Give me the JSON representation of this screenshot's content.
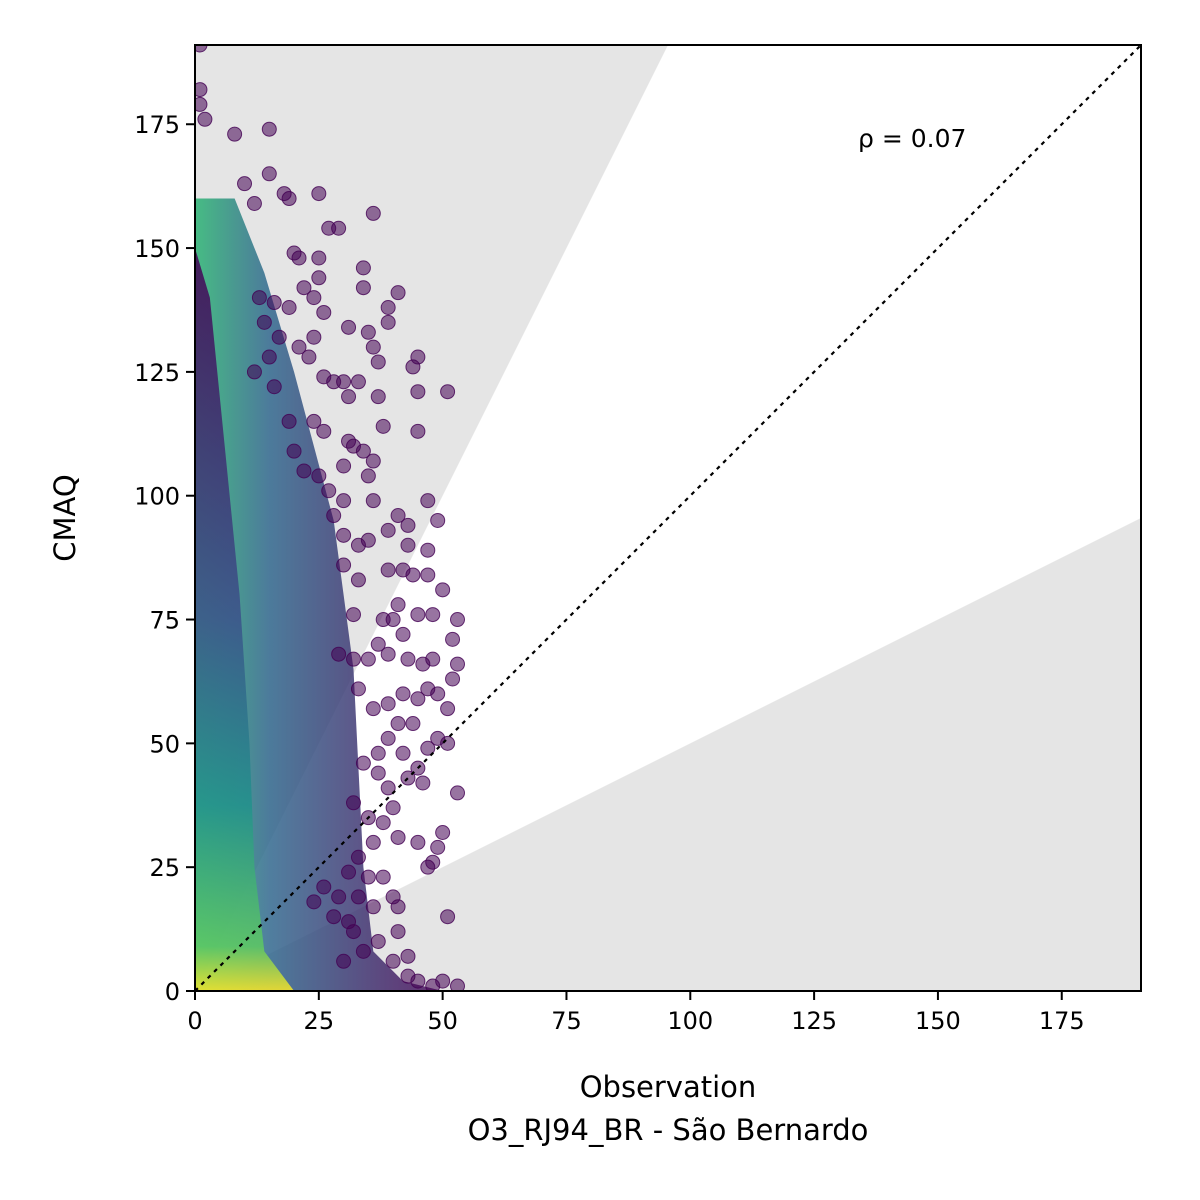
{
  "chart_data": {
    "type": "scatter",
    "title": "",
    "xlabel": "Observation",
    "ylabel": "CMAQ",
    "subtitle": "O3_RJ94_BR - São Bernardo",
    "annotation": "ρ = 0.07",
    "xlim": [
      0,
      191
    ],
    "ylim": [
      0,
      191
    ],
    "xticks": [
      "0",
      "25",
      "50",
      "75",
      "100",
      "125",
      "150",
      "175"
    ],
    "yticks": [
      "0",
      "25",
      "50",
      "75",
      "100",
      "125",
      "150",
      "175"
    ],
    "xtick_values": [
      0,
      25,
      50,
      75,
      100,
      125,
      150,
      175
    ],
    "ytick_values": [
      0,
      25,
      50,
      75,
      100,
      125,
      150,
      175
    ],
    "grid": false,
    "legend": "none",
    "reference_line": {
      "style": "dotted",
      "slope": 1,
      "color": "#000000"
    },
    "shaded_regions": [
      {
        "description": "factor-of-2 exceedance",
        "upper_slope": 2,
        "lower_slope": 0.5,
        "color": "#e5e5e5"
      }
    ],
    "colormap": "viridis",
    "colors": {
      "low_density": "#440154",
      "mid_density": "#21918c",
      "high_density": "#fde725",
      "shade": "#e5e5e5"
    },
    "outlier_points": [
      [
        1,
        191
      ],
      [
        1,
        182
      ],
      [
        1,
        179
      ],
      [
        2,
        176
      ],
      [
        8,
        173
      ],
      [
        15,
        174
      ],
      [
        15,
        165
      ],
      [
        18,
        161
      ],
      [
        19,
        160
      ],
      [
        10,
        163
      ],
      [
        12,
        159
      ],
      [
        25,
        161
      ],
      [
        36,
        157
      ],
      [
        27,
        154
      ],
      [
        29,
        154
      ],
      [
        20,
        149
      ],
      [
        21,
        148
      ],
      [
        25,
        148
      ],
      [
        25,
        144
      ],
      [
        34,
        146
      ],
      [
        34,
        142
      ],
      [
        41,
        141
      ],
      [
        39,
        138
      ],
      [
        13,
        140
      ],
      [
        14,
        135
      ],
      [
        16,
        139
      ],
      [
        19,
        138
      ],
      [
        17,
        132
      ],
      [
        22,
        142
      ],
      [
        24,
        140
      ],
      [
        26,
        137
      ],
      [
        24,
        132
      ],
      [
        31,
        134
      ],
      [
        35,
        133
      ],
      [
        39,
        135
      ],
      [
        15,
        128
      ],
      [
        12,
        125
      ],
      [
        16,
        122
      ],
      [
        21,
        130
      ],
      [
        23,
        128
      ],
      [
        26,
        124
      ],
      [
        28,
        123
      ],
      [
        30,
        123
      ],
      [
        31,
        120
      ],
      [
        33,
        123
      ],
      [
        36,
        130
      ],
      [
        37,
        127
      ],
      [
        45,
        128
      ],
      [
        44,
        126
      ],
      [
        45,
        121
      ],
      [
        51,
        121
      ],
      [
        37,
        120
      ],
      [
        45,
        113
      ],
      [
        38,
        114
      ],
      [
        19,
        115
      ],
      [
        24,
        115
      ],
      [
        26,
        113
      ],
      [
        31,
        111
      ],
      [
        32,
        110
      ],
      [
        34,
        109
      ],
      [
        36,
        107
      ],
      [
        20,
        109
      ],
      [
        22,
        105
      ],
      [
        25,
        104
      ],
      [
        30,
        106
      ],
      [
        35,
        104
      ],
      [
        27,
        101
      ],
      [
        30,
        99
      ],
      [
        36,
        99
      ],
      [
        41,
        96
      ],
      [
        43,
        94
      ],
      [
        47,
        99
      ],
      [
        49,
        95
      ],
      [
        28,
        96
      ],
      [
        30,
        92
      ],
      [
        33,
        90
      ],
      [
        35,
        91
      ],
      [
        39,
        93
      ],
      [
        43,
        90
      ],
      [
        47,
        89
      ],
      [
        44,
        84
      ],
      [
        39,
        85
      ],
      [
        42,
        85
      ],
      [
        47,
        84
      ],
      [
        30,
        86
      ],
      [
        33,
        83
      ],
      [
        41,
        78
      ],
      [
        40,
        75
      ],
      [
        42,
        72
      ],
      [
        45,
        76
      ],
      [
        48,
        76
      ],
      [
        50,
        81
      ],
      [
        53,
        75
      ],
      [
        52,
        71
      ],
      [
        38,
        75
      ],
      [
        32,
        76
      ],
      [
        37,
        70
      ],
      [
        39,
        68
      ],
      [
        43,
        67
      ],
      [
        46,
        66
      ],
      [
        48,
        67
      ],
      [
        53,
        66
      ],
      [
        52,
        63
      ],
      [
        29,
        68
      ],
      [
        32,
        67
      ],
      [
        35,
        67
      ],
      [
        33,
        61
      ],
      [
        36,
        57
      ],
      [
        39,
        58
      ],
      [
        42,
        60
      ],
      [
        45,
        59
      ],
      [
        47,
        61
      ],
      [
        49,
        60
      ],
      [
        51,
        57
      ],
      [
        41,
        54
      ],
      [
        44,
        54
      ],
      [
        39,
        51
      ],
      [
        42,
        48
      ],
      [
        45,
        45
      ],
      [
        47,
        49
      ],
      [
        49,
        51
      ],
      [
        51,
        50
      ],
      [
        37,
        48
      ],
      [
        34,
        46
      ],
      [
        37,
        44
      ],
      [
        39,
        41
      ],
      [
        40,
        37
      ],
      [
        43,
        43
      ],
      [
        46,
        42
      ],
      [
        53,
        40
      ],
      [
        32,
        38
      ],
      [
        35,
        35
      ],
      [
        38,
        34
      ],
      [
        41,
        31
      ],
      [
        45,
        30
      ],
      [
        50,
        32
      ],
      [
        49,
        29
      ],
      [
        48,
        26
      ],
      [
        47,
        25
      ],
      [
        36,
        30
      ],
      [
        33,
        27
      ],
      [
        31,
        24
      ],
      [
        35,
        23
      ],
      [
        38,
        23
      ],
      [
        40,
        19
      ],
      [
        41,
        17
      ],
      [
        36,
        17
      ],
      [
        33,
        19
      ],
      [
        29,
        19
      ],
      [
        31,
        14
      ],
      [
        32,
        12
      ],
      [
        37,
        10
      ],
      [
        41,
        12
      ],
      [
        43,
        7
      ],
      [
        40,
        6
      ],
      [
        43,
        3
      ],
      [
        45,
        2
      ],
      [
        48,
        1
      ],
      [
        50,
        2
      ],
      [
        53,
        1
      ],
      [
        51,
        15
      ],
      [
        30,
        6
      ],
      [
        34,
        8
      ],
      [
        26,
        21
      ],
      [
        24,
        18
      ],
      [
        28,
        15
      ]
    ]
  }
}
